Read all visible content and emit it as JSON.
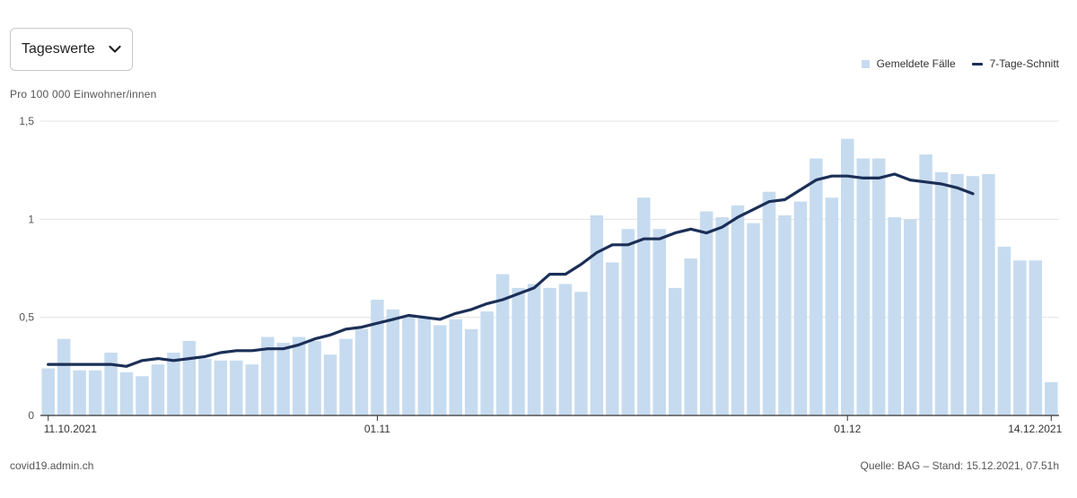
{
  "dropdown": {
    "label": "Tageswerte"
  },
  "unit_label": "Pro 100 000 Einwohner/innen",
  "legend": {
    "bars": "Gemeldete Fälle",
    "line": "7-Tage-Schnitt"
  },
  "footer": {
    "source_site": "covid19.admin.ch",
    "source_note": "Quelle: BAG – Stand: 15.12.2021, 07.51h"
  },
  "colors": {
    "bars": "#c6dbef",
    "line": "#1b2f57",
    "grid": "#e3e3e3",
    "axis": "#333333"
  },
  "chart_data": {
    "type": "bar",
    "x_start": "11.10.2021",
    "x_end": "14.12.2021",
    "ylim": [
      0,
      1.5
    ],
    "y_ticks": [
      0,
      0.5,
      1,
      1.5
    ],
    "y_tick_labels": [
      "0",
      "0,5",
      "1",
      "1,5"
    ],
    "x_tick_labels": [
      {
        "index": 0,
        "label": "11.10.2021"
      },
      {
        "index": 21,
        "label": "01.11"
      },
      {
        "index": 51,
        "label": "01.12"
      },
      {
        "index": 64,
        "label": "14.12.2021"
      }
    ],
    "grid": true,
    "legend_position": "top-right",
    "series": [
      {
        "name": "Gemeldete Fälle",
        "type": "bar",
        "values": [
          0.24,
          0.39,
          0.23,
          0.23,
          0.32,
          0.22,
          0.2,
          0.26,
          0.32,
          0.38,
          0.29,
          0.28,
          0.28,
          0.26,
          0.4,
          0.37,
          0.4,
          0.38,
          0.31,
          0.39,
          0.44,
          0.59,
          0.54,
          0.5,
          0.5,
          0.46,
          0.49,
          0.44,
          0.53,
          0.72,
          0.65,
          0.67,
          0.65,
          0.67,
          0.63,
          1.02,
          0.78,
          0.95,
          1.11,
          0.95,
          0.65,
          0.8,
          1.04,
          1.01,
          1.07,
          0.98,
          1.14,
          1.02,
          1.09,
          1.31,
          1.11,
          1.41,
          1.31,
          1.31,
          1.01,
          1.0,
          1.33,
          1.24,
          1.23,
          1.22,
          1.23,
          0.86,
          0.79,
          0.79,
          0.17
        ]
      },
      {
        "name": "7-Tage-Schnitt",
        "type": "line",
        "values": [
          0.26,
          0.26,
          0.26,
          0.26,
          0.26,
          0.25,
          0.28,
          0.29,
          0.28,
          0.29,
          0.3,
          0.32,
          0.33,
          0.33,
          0.34,
          0.34,
          0.36,
          0.39,
          0.41,
          0.44,
          0.45,
          0.47,
          0.49,
          0.51,
          0.5,
          0.49,
          0.52,
          0.54,
          0.57,
          0.59,
          0.62,
          0.65,
          0.72,
          0.72,
          0.77,
          0.83,
          0.87,
          0.87,
          0.9,
          0.9,
          0.93,
          0.95,
          0.93,
          0.96,
          1.01,
          1.05,
          1.09,
          1.1,
          1.15,
          1.2,
          1.22,
          1.22,
          1.21,
          1.21,
          1.23,
          1.2,
          1.19,
          1.18,
          1.16,
          1.13
        ]
      }
    ]
  }
}
